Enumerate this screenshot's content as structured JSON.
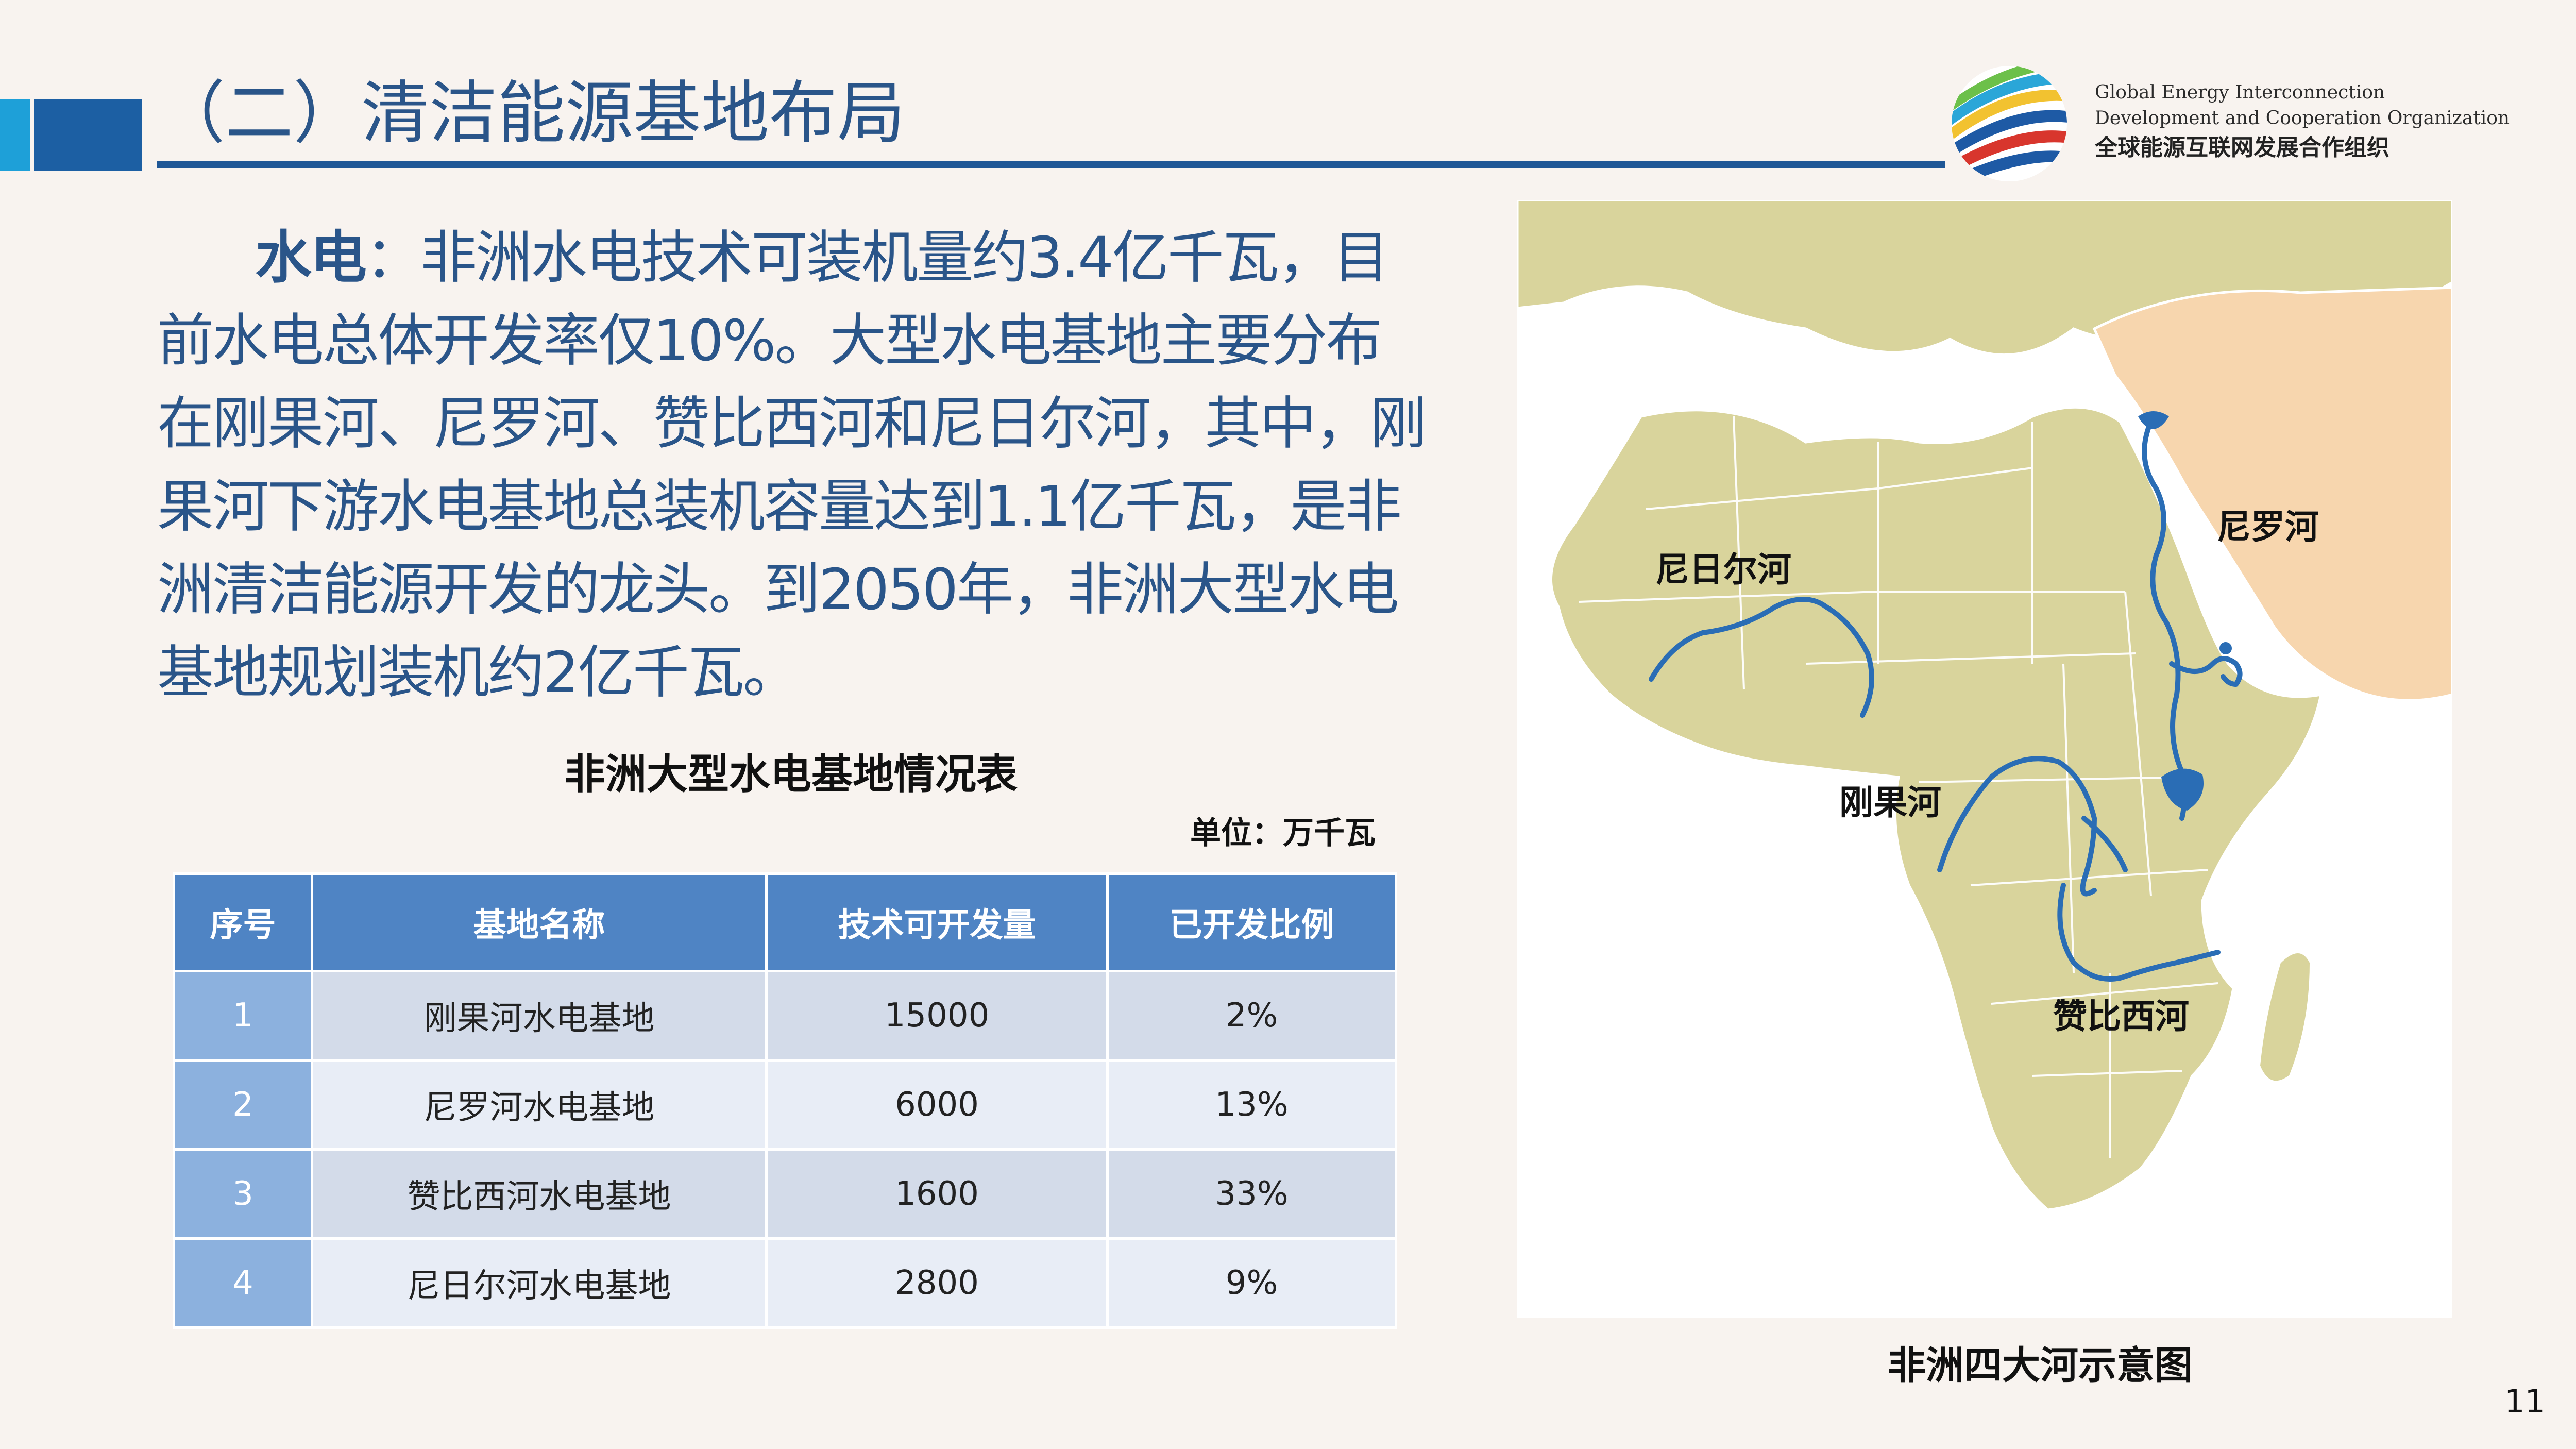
{
  "header": {
    "title": "（二）清洁能源基地布局",
    "org_en_line1": "Global Energy Interconnection",
    "org_en_line2": "Development and Cooperation Organization",
    "org_cn": "全球能源互联网发展合作组织"
  },
  "paragraph": {
    "lead": "水电",
    "text": "：非洲水电技术可装机量约3.4亿千瓦，目前水电总体开发率仅10%。大型水电基地主要分布在刚果河、尼罗河、赞比西河和尼日尔河，其中，刚果河下游水电基地总装机容量达到1.1亿千瓦，是非洲清洁能源开发的龙头。到2050年，非洲大型水电基地规划装机约2亿千瓦。"
  },
  "table": {
    "title": "非洲大型水电基地情况表",
    "unit": "单位：万千瓦",
    "headers": [
      "序号",
      "基地名称",
      "技术可开发量",
      "已开发比例"
    ],
    "rows": [
      [
        "1",
        "刚果河水电基地",
        "15000",
        "2%"
      ],
      [
        "2",
        "尼罗河水电基地",
        "6000",
        "13%"
      ],
      [
        "3",
        "赞比西河水电基地",
        "1600",
        "33%"
      ],
      [
        "4",
        "尼日尔河水电基地",
        "2800",
        "9%"
      ]
    ]
  },
  "map": {
    "caption": "非洲四大河示意图",
    "labels": {
      "niger": "尼日尔河",
      "nile": "尼罗河",
      "congo": "刚果河",
      "zambezi": "赞比西河"
    },
    "colors": {
      "land": "#d9d49c",
      "arabia": "#f7d6ae",
      "river": "#2a6db5",
      "sea": "#ffffff"
    }
  },
  "page_number": "11"
}
